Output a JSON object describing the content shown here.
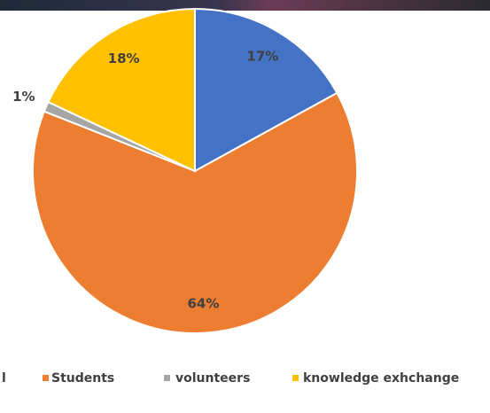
{
  "chart_data": {
    "type": "pie",
    "categories": [
      "l",
      "Students",
      "volunteers",
      "knowledge exhchange"
    ],
    "values": [
      17,
      64,
      1,
      18
    ],
    "value_labels": [
      "17%",
      "64%",
      "1%",
      "18%"
    ],
    "colors": [
      "#4472c4",
      "#ed7d31",
      "#a5a5a5",
      "#ffc000"
    ]
  }
}
